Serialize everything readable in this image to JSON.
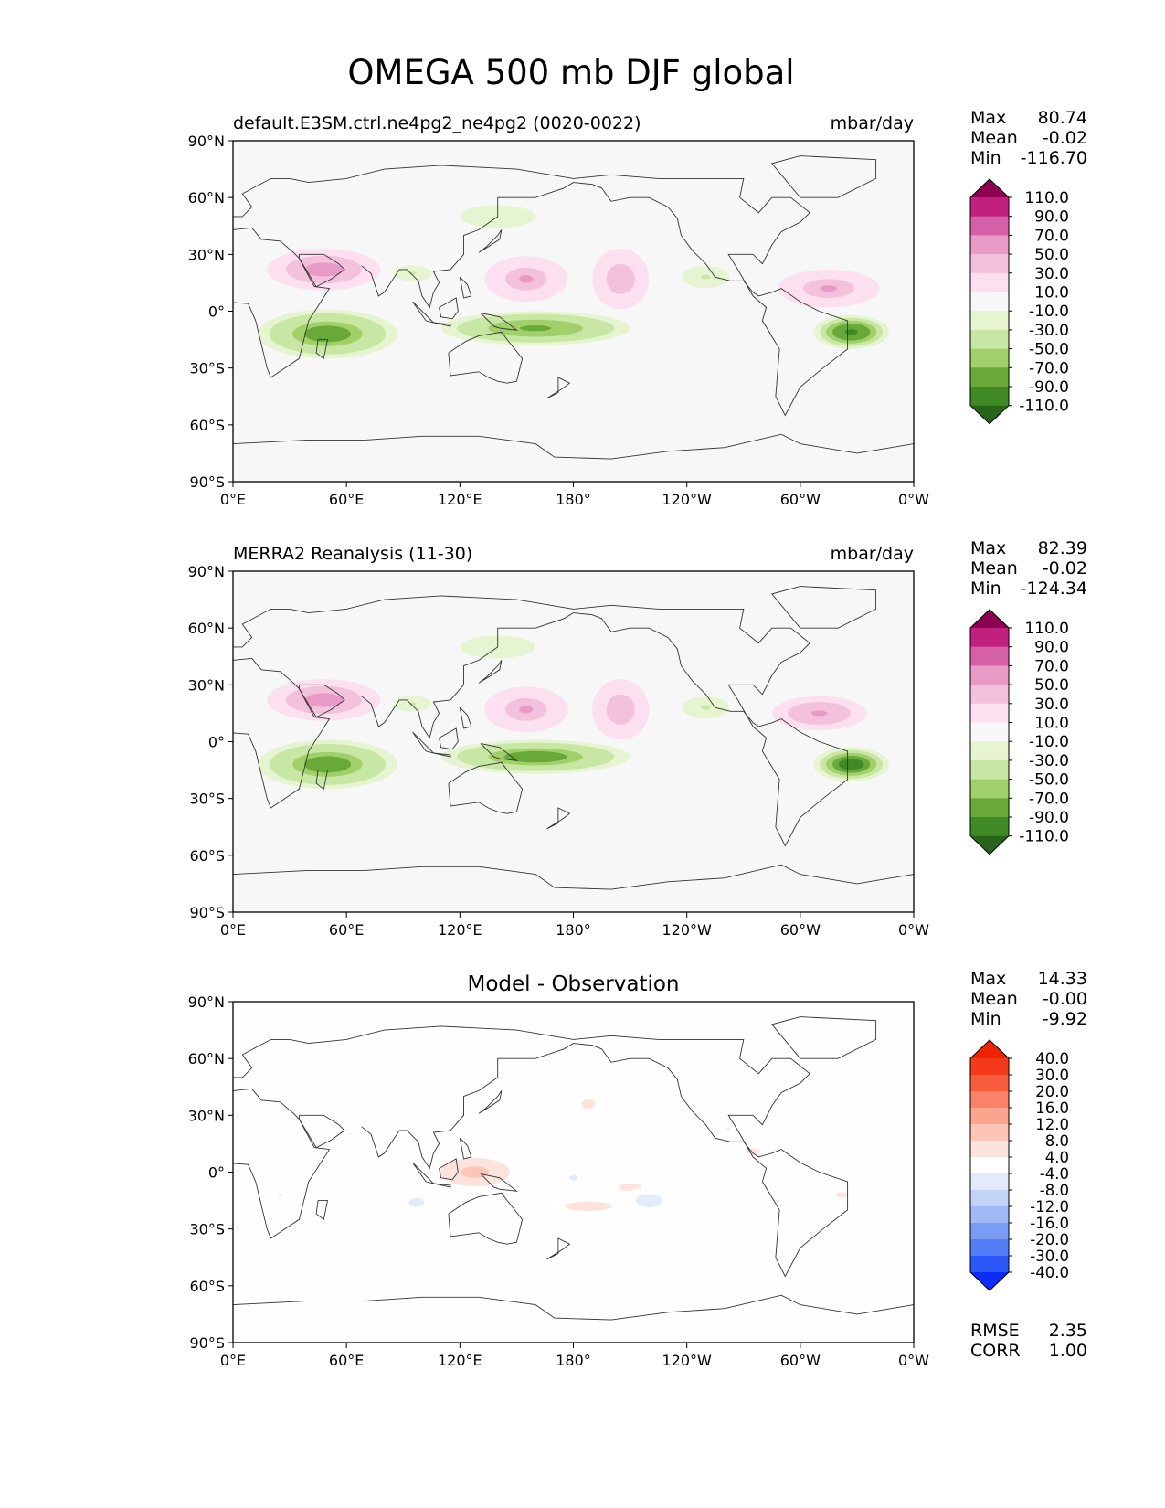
{
  "title": "OMEGA 500 mb DJF global",
  "axes": {
    "lon_ticks": [
      "0°E",
      "60°E",
      "120°E",
      "180°",
      "120°W",
      "60°W",
      "0°W"
    ],
    "lat_ticks": [
      "90°N",
      "60°N",
      "30°N",
      "0°",
      "30°S",
      "60°S",
      "90°S"
    ]
  },
  "colors": {
    "field": [
      "#276419",
      "#3f8a24",
      "#68a93a",
      "#a1cf69",
      "#c9e7a4",
      "#e6f4d2",
      "#f7f7f7",
      "#fde0ef",
      "#f4c1dd",
      "#e899c6",
      "#d660a8",
      "#c2207e",
      "#8e0152"
    ],
    "diff": [
      "#0b2df5",
      "#2b57f6",
      "#527df6",
      "#7b9cf5",
      "#a1b9f6",
      "#c3d2f7",
      "#e3eafb",
      "#ffffff",
      "#fde3dc",
      "#fcc5b6",
      "#fba58f",
      "#fa8266",
      "#f85e3e",
      "#f5391b",
      "#ee2400"
    ]
  },
  "stats_labels": {
    "max": "Max",
    "mean": "Mean",
    "min": "Min",
    "rmse": "RMSE",
    "corr": "CORR"
  },
  "chart_data": [
    {
      "type": "heatmap",
      "kind": "filled contour map",
      "title": "default.E3SM.ctrl.ne4pg2_ne4pg2 (0020-0022)",
      "units": "mbar/day",
      "stats": {
        "max": "80.74",
        "mean": "-0.02",
        "min": "-116.70"
      },
      "colorbar_levels": [
        "110.0",
        "90.0",
        "70.0",
        "50.0",
        "30.0",
        "10.0",
        "-10.0",
        "-30.0",
        "-50.0",
        "-70.0",
        "-90.0",
        "-110.0"
      ],
      "xlim": [
        0,
        360
      ],
      "ylim": [
        -90,
        90
      ],
      "features": [
        {
          "lon": 48,
          "lat": 22,
          "rx": 30,
          "ry": 11,
          "value": 60
        },
        {
          "lon": 155,
          "lat": 17,
          "rx": 22,
          "ry": 12,
          "value": 50
        },
        {
          "lon": 205,
          "lat": 17,
          "rx": 15,
          "ry": 16,
          "value": 45
        },
        {
          "lon": 315,
          "lat": 12,
          "rx": 27,
          "ry": 10,
          "value": 50
        },
        {
          "lon": 50,
          "lat": -12,
          "rx": 37,
          "ry": 13,
          "value": -85
        },
        {
          "lon": 160,
          "lat": -9,
          "rx": 50,
          "ry": 9,
          "value": -80
        },
        {
          "lon": 327,
          "lat": -11,
          "rx": 20,
          "ry": 9,
          "value": -105
        },
        {
          "lon": 95,
          "lat": 20,
          "rx": 12,
          "ry": 5,
          "value": -35
        },
        {
          "lon": 250,
          "lat": 18,
          "rx": 15,
          "ry": 7,
          "value": -35
        },
        {
          "lon": 140,
          "lat": 50,
          "rx": 30,
          "ry": 9,
          "value": -25
        }
      ]
    },
    {
      "type": "heatmap",
      "kind": "filled contour map",
      "title": "MERRA2 Reanalysis (11-30)",
      "units": "mbar/day",
      "stats": {
        "max": "82.39",
        "mean": "-0.02",
        "min": "-124.34"
      },
      "colorbar_levels": [
        "110.0",
        "90.0",
        "70.0",
        "50.0",
        "30.0",
        "10.0",
        "-10.0",
        "-30.0",
        "-50.0",
        "-70.0",
        "-90.0",
        "-110.0"
      ],
      "xlim": [
        0,
        360
      ],
      "ylim": [
        -90,
        90
      ],
      "features": [
        {
          "lon": 48,
          "lat": 22,
          "rx": 30,
          "ry": 11,
          "value": 62
        },
        {
          "lon": 155,
          "lat": 17,
          "rx": 22,
          "ry": 12,
          "value": 52
        },
        {
          "lon": 205,
          "lat": 17,
          "rx": 15,
          "ry": 16,
          "value": 45
        },
        {
          "lon": 310,
          "lat": 15,
          "rx": 25,
          "ry": 9,
          "value": 55
        },
        {
          "lon": 50,
          "lat": -12,
          "rx": 37,
          "ry": 13,
          "value": -88
        },
        {
          "lon": 160,
          "lat": -8,
          "rx": 50,
          "ry": 9,
          "value": -85
        },
        {
          "lon": 327,
          "lat": -12,
          "rx": 20,
          "ry": 9,
          "value": -110
        },
        {
          "lon": 95,
          "lat": 20,
          "rx": 12,
          "ry": 5,
          "value": -35
        },
        {
          "lon": 250,
          "lat": 18,
          "rx": 15,
          "ry": 7,
          "value": -35
        },
        {
          "lon": 140,
          "lat": 50,
          "rx": 30,
          "ry": 9,
          "value": -25
        }
      ]
    },
    {
      "type": "heatmap",
      "kind": "filled contour map",
      "title": "Model - Observation",
      "units": "",
      "stats": {
        "max": "14.33",
        "mean": "-0.00",
        "min": "-9.92"
      },
      "colorbar_levels": [
        "40.0",
        "30.0",
        "20.0",
        "16.0",
        "12.0",
        "8.0",
        "4.0",
        "-4.0",
        "-8.0",
        "-12.0",
        "-16.0",
        "-20.0",
        "-30.0",
        "-40.0"
      ],
      "rmse": "2.35",
      "corr": "1.00",
      "xlim": [
        0,
        360
      ],
      "ylim": [
        -90,
        90
      ],
      "features": [
        {
          "lon": 128,
          "lat": 0,
          "rx": 22,
          "ry": 9,
          "value": 10
        },
        {
          "lon": 188,
          "lat": 36,
          "rx": 7,
          "ry": 5,
          "value": 6
        },
        {
          "lon": 188,
          "lat": -18,
          "rx": 25,
          "ry": 5,
          "value": 6
        },
        {
          "lon": 210,
          "lat": -8,
          "rx": 12,
          "ry": 4,
          "value": 6
        },
        {
          "lon": 275,
          "lat": 11,
          "rx": 8,
          "ry": 3,
          "value": 6
        },
        {
          "lon": 322,
          "lat": -12,
          "rx": 6,
          "ry": 3,
          "value": 6
        },
        {
          "lon": 25,
          "lat": -12,
          "rx": 4,
          "ry": 2,
          "value": 5
        },
        {
          "lon": 220,
          "lat": -15,
          "rx": 14,
          "ry": 7,
          "value": -6
        },
        {
          "lon": 97,
          "lat": -16,
          "rx": 8,
          "ry": 5,
          "value": -6
        },
        {
          "lon": 180,
          "lat": -3,
          "rx": 7,
          "ry": 4,
          "value": -5
        },
        {
          "lon": 262,
          "lat": 23,
          "rx": 2,
          "ry": 2,
          "value": -5
        }
      ]
    }
  ]
}
